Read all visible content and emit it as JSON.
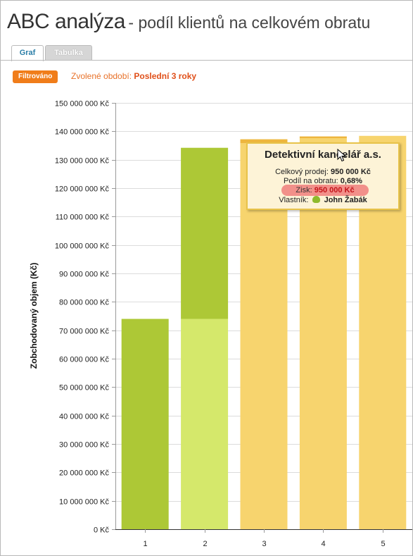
{
  "header": {
    "title": "ABC analýza",
    "subtitle": "- podíl klientů na celkovém obratu"
  },
  "tabs": [
    {
      "label": "Graf",
      "active": true
    },
    {
      "label": "Tabulka",
      "active": false
    }
  ],
  "filter": {
    "badge": "Filtrováno",
    "period_label": "Zvolené období:",
    "period_value": "Poslední 3 roky"
  },
  "tooltip": {
    "title": "Detektivní kancelář a.s.",
    "sales_label": "Celkový prodej:",
    "sales_value": "950 000 Kč",
    "share_label": "Podíl na obratu:",
    "share_value": "0,68%",
    "profit_label": "Zisk:",
    "profit_value": "950 000 Kč",
    "owner_label": "Vlastník:",
    "owner_value": "John Žabák",
    "owner_icon": "frog-icon"
  },
  "colors": {
    "class_a": "#adc836",
    "class_b": "#d5e86b",
    "class_c": "#f7d46e",
    "class_c_highlight": "#eeb63e",
    "accent_orange": "#f07d1a"
  },
  "chart_data": {
    "type": "bar",
    "stacked": true,
    "ylabel": "Zobchodovaný objem (Kč)",
    "xlabel": "",
    "categories": [
      "1",
      "2",
      "3",
      "4",
      "5"
    ],
    "yticks": [
      "0 Kč",
      "10 000 000 Kč",
      "20 000 000 Kč",
      "30 000 000 Kč",
      "40 000 000 Kč",
      "50 000 000 Kč",
      "60 000 000 Kč",
      "70 000 000 Kč",
      "80 000 000 Kč",
      "90 000 000 Kč",
      "100 000 000 Kč",
      "110 000 000 Kč",
      "120 000 000 Kč",
      "130 000 000 Kč",
      "140 000 000 Kč",
      "150 000 000 Kč"
    ],
    "ylim": [
      0,
      150000000
    ],
    "grid": true,
    "segments": [
      {
        "category": "1",
        "from": 0,
        "to": 74000000,
        "class": "A"
      },
      {
        "category": "2",
        "from": 0,
        "to": 74000000,
        "class": "B"
      },
      {
        "category": "2",
        "from": 74000000,
        "to": 134200000,
        "class": "A"
      },
      {
        "category": "3",
        "from": 0,
        "to": 135800000,
        "class": "C"
      },
      {
        "category": "3",
        "from": 135800000,
        "to": 137200000,
        "class": "C-highlight"
      },
      {
        "category": "4",
        "from": 0,
        "to": 137600000,
        "class": "C"
      },
      {
        "category": "4",
        "from": 137600000,
        "to": 138200000,
        "class": "C-highlight"
      },
      {
        "category": "5",
        "from": 0,
        "to": 138400000,
        "class": "C"
      }
    ]
  }
}
